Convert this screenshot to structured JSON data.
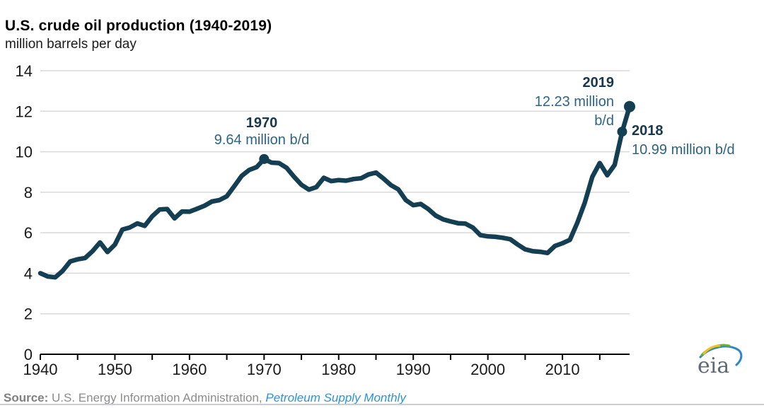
{
  "title": "U.S. crude oil production (1940-2019)",
  "subtitle": "million barrels per day",
  "annotations": {
    "peak1970": {
      "year": "1970",
      "value": "9.64 million b/d"
    },
    "y2019": {
      "year": "2019",
      "value_line1": "12.23 million",
      "value_line2": "b/d"
    },
    "y2018": {
      "year": "2018",
      "value": "10.99 million b/d"
    }
  },
  "source": {
    "label": "Source:",
    "agency": " U.S. Energy Information Administration, ",
    "publication": "Petroleum Supply Monthly"
  },
  "logo_text": "eia",
  "colors": {
    "line": "#143e52",
    "grid": "#d9d9d9",
    "axis": "#000000",
    "tick_label": "#1a1a1a",
    "year_label": "#16374e",
    "value_label": "#2d6484",
    "source_gray": "#808080",
    "source_blue": "#2a94d8",
    "logo_gray": "#5d6974",
    "logo_blue": "#2e86c9",
    "logo_green": "#68b025",
    "logo_yellow": "#f3c117"
  },
  "chart_data": {
    "type": "line",
    "title": "U.S. crude oil production (1940-2019)",
    "ylabel": "million barrels per day",
    "xlim": [
      1940,
      2019
    ],
    "ylim": [
      0,
      14
    ],
    "grid": "horizontal",
    "legend": "none",
    "y_ticks": [
      0,
      2,
      4,
      6,
      8,
      10,
      12,
      14
    ],
    "x_tick_labels": [
      1940,
      1950,
      1960,
      1970,
      1980,
      1990,
      2000,
      2010
    ],
    "x_minor_tick_step": 5,
    "line_color": "#143e52",
    "x": [
      1940,
      1941,
      1942,
      1943,
      1944,
      1945,
      1946,
      1947,
      1948,
      1949,
      1950,
      1951,
      1952,
      1953,
      1954,
      1955,
      1956,
      1957,
      1958,
      1959,
      1960,
      1961,
      1962,
      1963,
      1964,
      1965,
      1966,
      1967,
      1968,
      1969,
      1970,
      1971,
      1972,
      1973,
      1974,
      1975,
      1976,
      1977,
      1978,
      1979,
      1980,
      1981,
      1982,
      1983,
      1984,
      1985,
      1986,
      1987,
      1988,
      1989,
      1990,
      1991,
      1992,
      1993,
      1994,
      1995,
      1996,
      1997,
      1998,
      1999,
      2000,
      2001,
      2002,
      2003,
      2004,
      2005,
      2006,
      2007,
      2008,
      2009,
      2010,
      2011,
      2012,
      2013,
      2014,
      2015,
      2016,
      2017,
      2018,
      2019
    ],
    "values": [
      4.0,
      3.84,
      3.8,
      4.12,
      4.58,
      4.69,
      4.75,
      5.09,
      5.52,
      5.05,
      5.41,
      6.16,
      6.26,
      6.46,
      6.34,
      6.81,
      7.15,
      7.17,
      6.71,
      7.05,
      7.04,
      7.18,
      7.33,
      7.54,
      7.61,
      7.8,
      8.3,
      8.81,
      9.1,
      9.24,
      9.64,
      9.46,
      9.44,
      9.21,
      8.77,
      8.37,
      8.13,
      8.25,
      8.71,
      8.55,
      8.6,
      8.57,
      8.65,
      8.69,
      8.88,
      8.97,
      8.68,
      8.35,
      8.14,
      7.61,
      7.36,
      7.42,
      7.17,
      6.85,
      6.66,
      6.56,
      6.47,
      6.45,
      6.25,
      5.88,
      5.82,
      5.8,
      5.75,
      5.68,
      5.42,
      5.18,
      5.09,
      5.06,
      5.0,
      5.35,
      5.48,
      5.65,
      6.5,
      7.49,
      8.76,
      9.44,
      8.84,
      9.35,
      10.99,
      12.23
    ],
    "markers": [
      {
        "year": 1970,
        "value": 9.64
      },
      {
        "year": 2018,
        "value": 10.99
      },
      {
        "year": 2019,
        "value": 12.23
      }
    ]
  }
}
